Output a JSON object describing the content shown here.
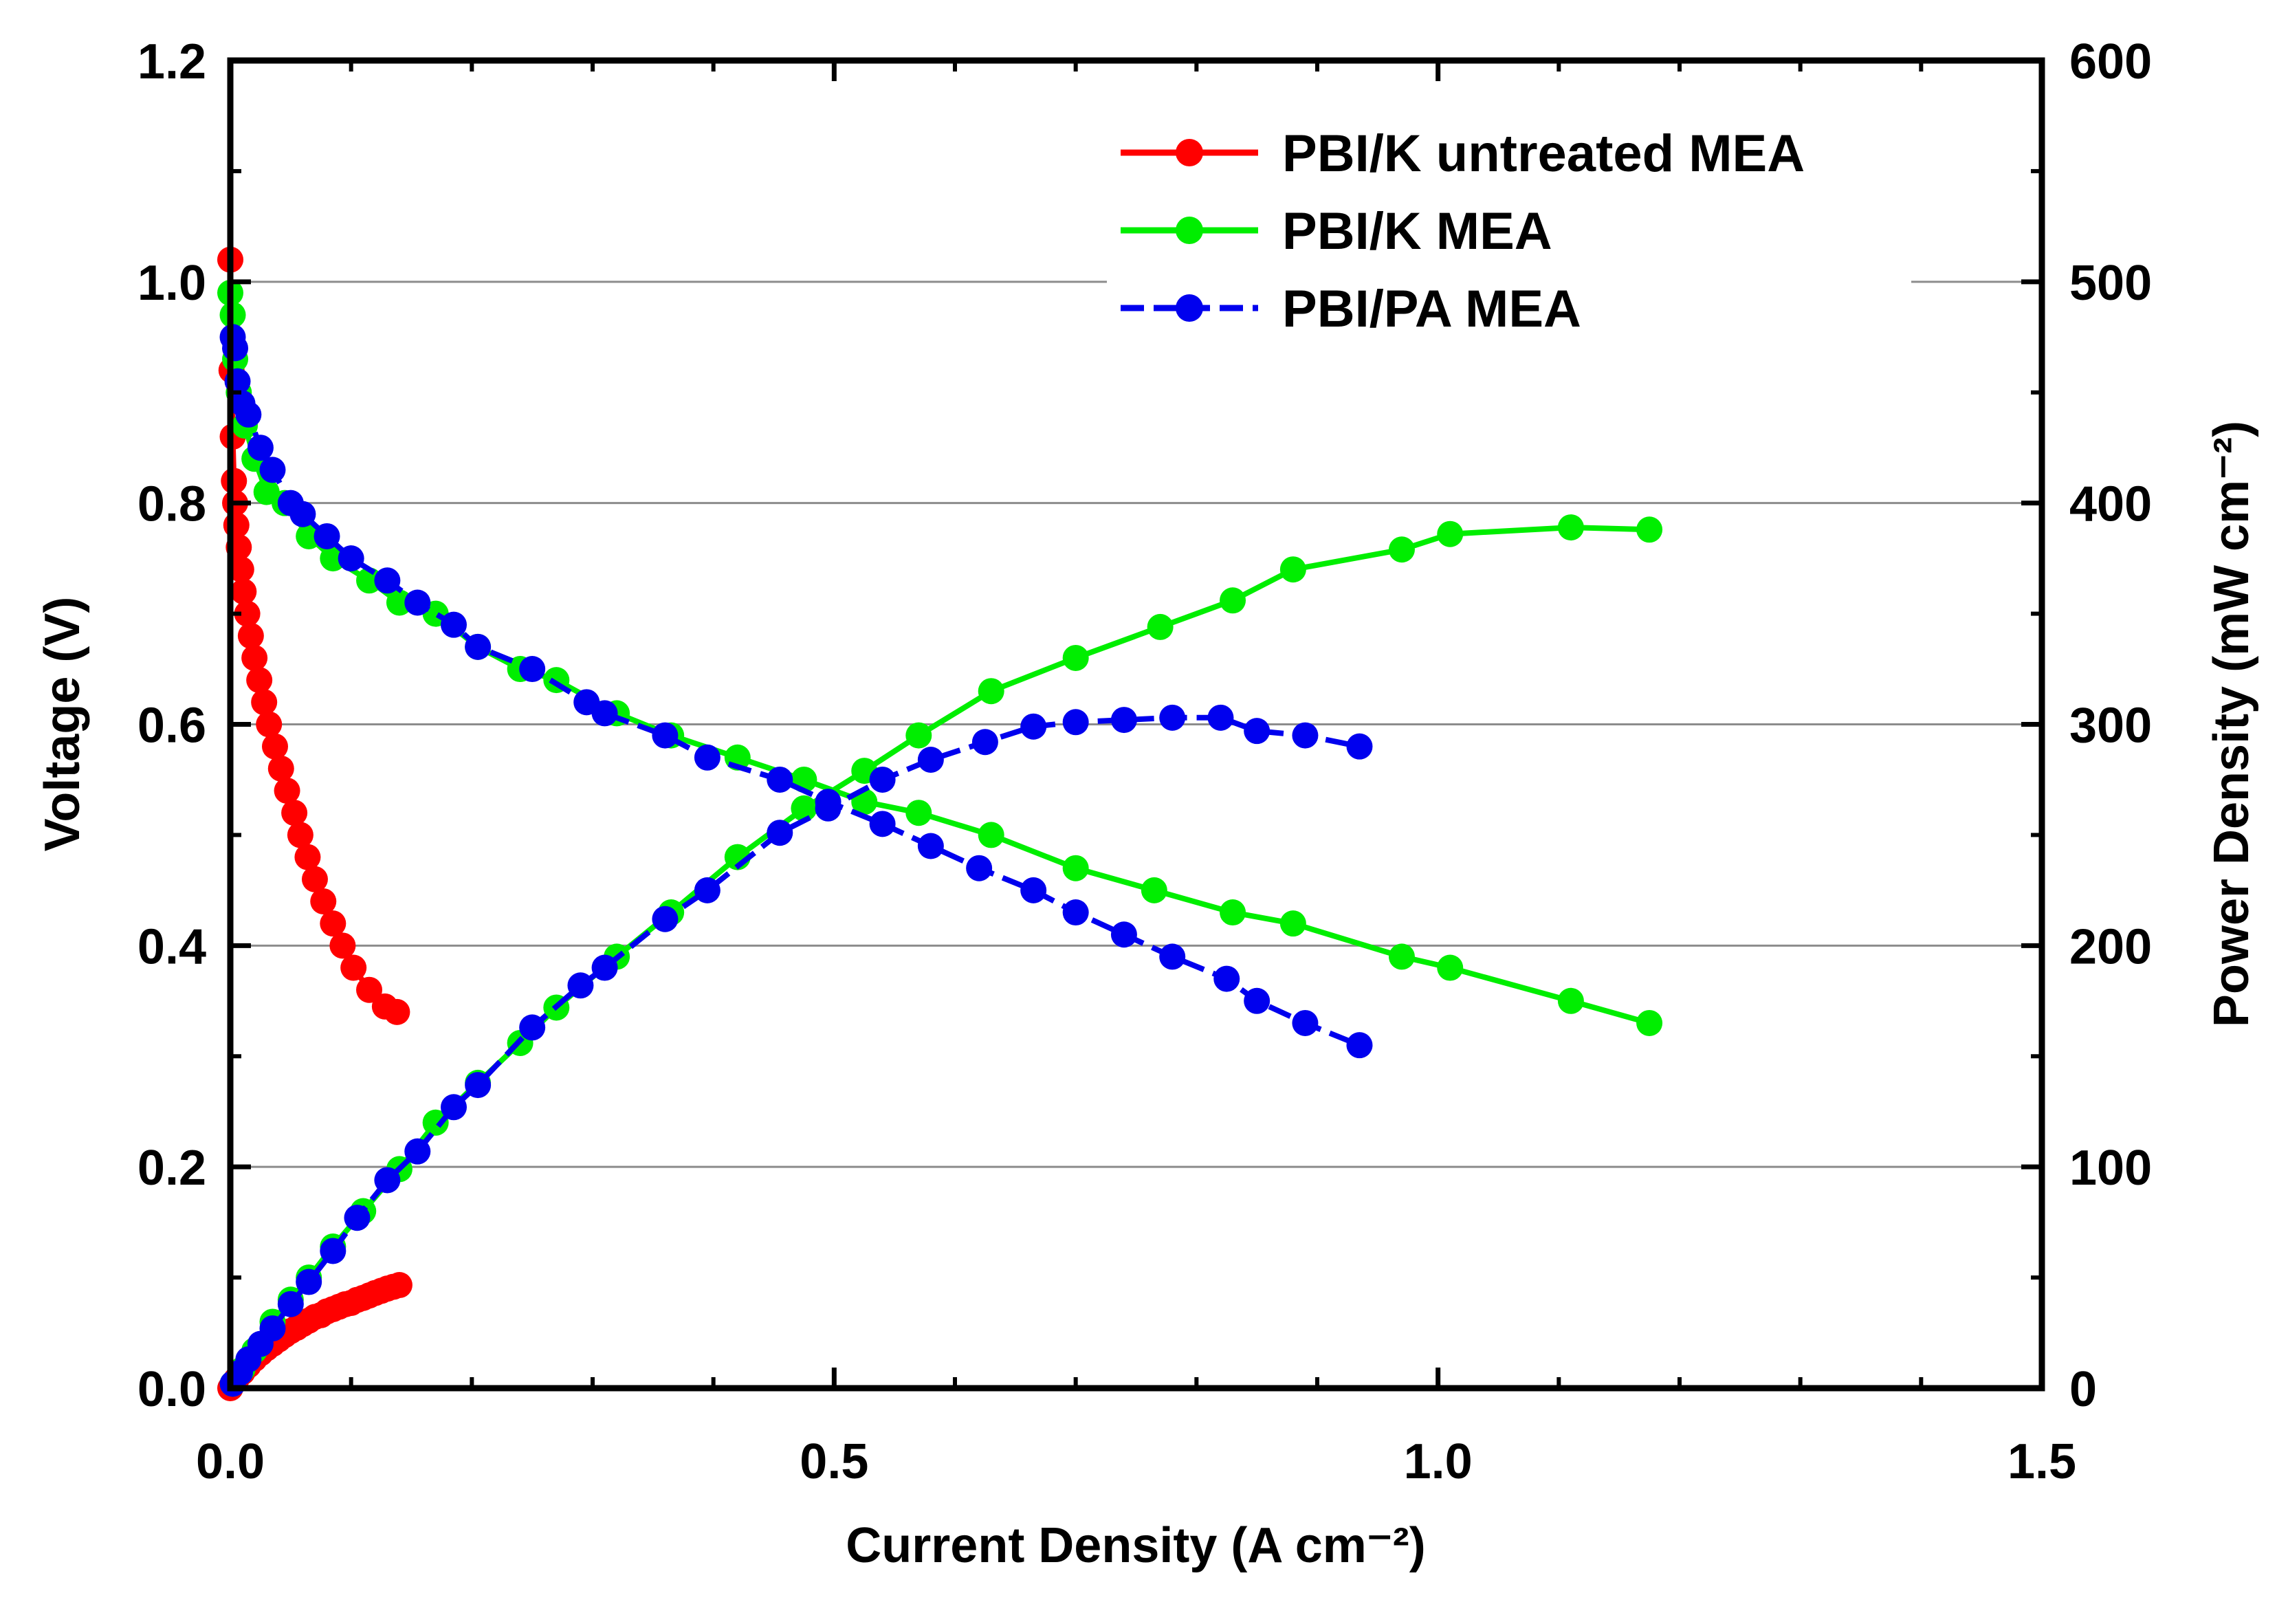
{
  "chart_data": {
    "type": "line",
    "x_axis": {
      "label": "Current Density (A cm⁻²)",
      "min": 0,
      "max": 1.5,
      "ticks": [
        "0.0",
        "0.5",
        "1.0",
        "1.5"
      ],
      "tick_values": [
        0,
        0.5,
        1.0,
        1.5
      ]
    },
    "y_left": {
      "label": "Voltage (V)",
      "min": 0,
      "max": 1.2,
      "ticks": [
        "0.0",
        "0.2",
        "0.4",
        "0.6",
        "0.8",
        "1.0",
        "1.2"
      ],
      "tick_values": [
        0,
        0.2,
        0.4,
        0.6,
        0.8,
        1.0,
        1.2
      ]
    },
    "y_right": {
      "label": "Power Density (mW cm⁻²)",
      "min": 0,
      "max": 600,
      "ticks": [
        "0",
        "100",
        "200",
        "300",
        "400",
        "500",
        "600"
      ],
      "tick_values": [
        0,
        100,
        200,
        300,
        400,
        500,
        600
      ]
    },
    "gridlines": "horizontal at left-axis major ticks",
    "legend": {
      "position": "top-right"
    },
    "series": [
      {
        "name": "PBI/K untreated MEA",
        "color": "#ff0000",
        "linestyle": "solid",
        "voltage": [
          [
            0.0,
            1.02
          ],
          [
            0.001,
            0.92
          ],
          [
            0.002,
            0.86
          ],
          [
            0.003,
            0.82
          ],
          [
            0.004,
            0.8
          ],
          [
            0.005,
            0.78
          ],
          [
            0.007,
            0.76
          ],
          [
            0.009,
            0.74
          ],
          [
            0.011,
            0.72
          ],
          [
            0.014,
            0.7
          ],
          [
            0.017,
            0.68
          ],
          [
            0.02,
            0.66
          ],
          [
            0.024,
            0.64
          ],
          [
            0.028,
            0.62
          ],
          [
            0.032,
            0.6
          ],
          [
            0.037,
            0.58
          ],
          [
            0.042,
            0.56
          ],
          [
            0.047,
            0.54
          ],
          [
            0.053,
            0.52
          ],
          [
            0.058,
            0.5
          ],
          [
            0.064,
            0.48
          ],
          [
            0.07,
            0.46
          ],
          [
            0.077,
            0.44
          ],
          [
            0.085,
            0.42
          ],
          [
            0.093,
            0.4
          ],
          [
            0.102,
            0.38
          ],
          [
            0.115,
            0.36
          ],
          [
            0.128,
            0.345
          ],
          [
            0.138,
            0.34
          ]
        ],
        "power": [
          [
            0.0,
            0
          ],
          [
            0.005,
            3.9
          ],
          [
            0.01,
            7.2
          ],
          [
            0.015,
            10.3
          ],
          [
            0.02,
            13.2
          ],
          [
            0.025,
            15.7
          ],
          [
            0.03,
            18.0
          ],
          [
            0.035,
            20.0
          ],
          [
            0.04,
            22.0
          ],
          [
            0.045,
            24.0
          ],
          [
            0.05,
            25.8
          ],
          [
            0.055,
            27.3
          ],
          [
            0.06,
            29.0
          ],
          [
            0.065,
            30.5
          ],
          [
            0.07,
            32.2
          ],
          [
            0.075,
            33.0
          ],
          [
            0.08,
            34.7
          ],
          [
            0.085,
            35.7
          ],
          [
            0.09,
            36.8
          ],
          [
            0.095,
            37.9
          ],
          [
            0.1,
            38.5
          ],
          [
            0.105,
            39.9
          ],
          [
            0.11,
            40.8
          ],
          [
            0.115,
            41.9
          ],
          [
            0.12,
            43.0
          ],
          [
            0.125,
            44.0
          ],
          [
            0.13,
            45.0
          ],
          [
            0.135,
            45.8
          ],
          [
            0.14,
            46.6
          ]
        ]
      },
      {
        "name": "PBI/K MEA",
        "color": "#00ee00",
        "linestyle": "solid",
        "voltage": [
          [
            0.0,
            0.99
          ],
          [
            0.002,
            0.97
          ],
          [
            0.004,
            0.93
          ],
          [
            0.007,
            0.9
          ],
          [
            0.012,
            0.87
          ],
          [
            0.02,
            0.84
          ],
          [
            0.03,
            0.81
          ],
          [
            0.045,
            0.8
          ],
          [
            0.065,
            0.77
          ],
          [
            0.085,
            0.75
          ],
          [
            0.115,
            0.73
          ],
          [
            0.14,
            0.71
          ],
          [
            0.17,
            0.7
          ],
          [
            0.205,
            0.67
          ],
          [
            0.24,
            0.65
          ],
          [
            0.27,
            0.64
          ],
          [
            0.32,
            0.61
          ],
          [
            0.365,
            0.59
          ],
          [
            0.42,
            0.57
          ],
          [
            0.475,
            0.55
          ],
          [
            0.525,
            0.53
          ],
          [
            0.57,
            0.52
          ],
          [
            0.63,
            0.5
          ],
          [
            0.7,
            0.47
          ],
          [
            0.765,
            0.45
          ],
          [
            0.83,
            0.43
          ],
          [
            0.88,
            0.42
          ],
          [
            0.97,
            0.39
          ],
          [
            1.01,
            0.38
          ],
          [
            1.11,
            0.35
          ],
          [
            1.175,
            0.33
          ]
        ],
        "power": [
          [
            0.002,
            2
          ],
          [
            0.01,
            8.5
          ],
          [
            0.02,
            17
          ],
          [
            0.035,
            30
          ],
          [
            0.05,
            40
          ],
          [
            0.065,
            50
          ],
          [
            0.085,
            64
          ],
          [
            0.11,
            80
          ],
          [
            0.14,
            99
          ],
          [
            0.17,
            120
          ],
          [
            0.205,
            138
          ],
          [
            0.24,
            156
          ],
          [
            0.27,
            172
          ],
          [
            0.32,
            195
          ],
          [
            0.365,
            215
          ],
          [
            0.42,
            240
          ],
          [
            0.475,
            262
          ],
          [
            0.525,
            279
          ],
          [
            0.57,
            295
          ],
          [
            0.63,
            315
          ],
          [
            0.7,
            330
          ],
          [
            0.77,
            344
          ],
          [
            0.83,
            356
          ],
          [
            0.88,
            370
          ],
          [
            0.97,
            379
          ],
          [
            1.01,
            386
          ],
          [
            1.11,
            389
          ],
          [
            1.175,
            388
          ]
        ]
      },
      {
        "name": "PBI/PA MEA",
        "color": "#0000ee",
        "linestyle": "dashed",
        "voltage": [
          [
            0.002,
            0.95
          ],
          [
            0.004,
            0.94
          ],
          [
            0.006,
            0.91
          ],
          [
            0.01,
            0.89
          ],
          [
            0.015,
            0.88
          ],
          [
            0.025,
            0.85
          ],
          [
            0.035,
            0.83
          ],
          [
            0.05,
            0.8
          ],
          [
            0.06,
            0.79
          ],
          [
            0.08,
            0.77
          ],
          [
            0.1,
            0.75
          ],
          [
            0.13,
            0.73
          ],
          [
            0.155,
            0.71
          ],
          [
            0.185,
            0.69
          ],
          [
            0.205,
            0.67
          ],
          [
            0.25,
            0.65
          ],
          [
            0.295,
            0.62
          ],
          [
            0.31,
            0.61
          ],
          [
            0.36,
            0.59
          ],
          [
            0.395,
            0.57
          ],
          [
            0.455,
            0.55
          ],
          [
            0.495,
            0.53
          ],
          [
            0.54,
            0.51
          ],
          [
            0.58,
            0.49
          ],
          [
            0.62,
            0.47
          ],
          [
            0.665,
            0.45
          ],
          [
            0.7,
            0.43
          ],
          [
            0.74,
            0.41
          ],
          [
            0.78,
            0.39
          ],
          [
            0.825,
            0.37
          ],
          [
            0.85,
            0.35
          ],
          [
            0.89,
            0.33
          ],
          [
            0.935,
            0.31
          ]
        ],
        "power": [
          [
            0.002,
            2
          ],
          [
            0.008,
            7
          ],
          [
            0.015,
            13
          ],
          [
            0.025,
            20
          ],
          [
            0.035,
            27
          ],
          [
            0.05,
            38
          ],
          [
            0.065,
            48
          ],
          [
            0.085,
            62
          ],
          [
            0.105,
            77
          ],
          [
            0.13,
            94
          ],
          [
            0.155,
            107
          ],
          [
            0.185,
            127
          ],
          [
            0.205,
            137
          ],
          [
            0.25,
            163
          ],
          [
            0.29,
            182
          ],
          [
            0.31,
            190
          ],
          [
            0.36,
            212
          ],
          [
            0.395,
            225
          ],
          [
            0.455,
            251
          ],
          [
            0.495,
            262
          ],
          [
            0.54,
            275
          ],
          [
            0.58,
            284
          ],
          [
            0.625,
            292
          ],
          [
            0.665,
            299
          ],
          [
            0.7,
            301
          ],
          [
            0.74,
            302
          ],
          [
            0.78,
            303
          ],
          [
            0.82,
            303
          ],
          [
            0.85,
            297
          ],
          [
            0.89,
            295
          ],
          [
            0.935,
            290
          ]
        ]
      }
    ]
  }
}
